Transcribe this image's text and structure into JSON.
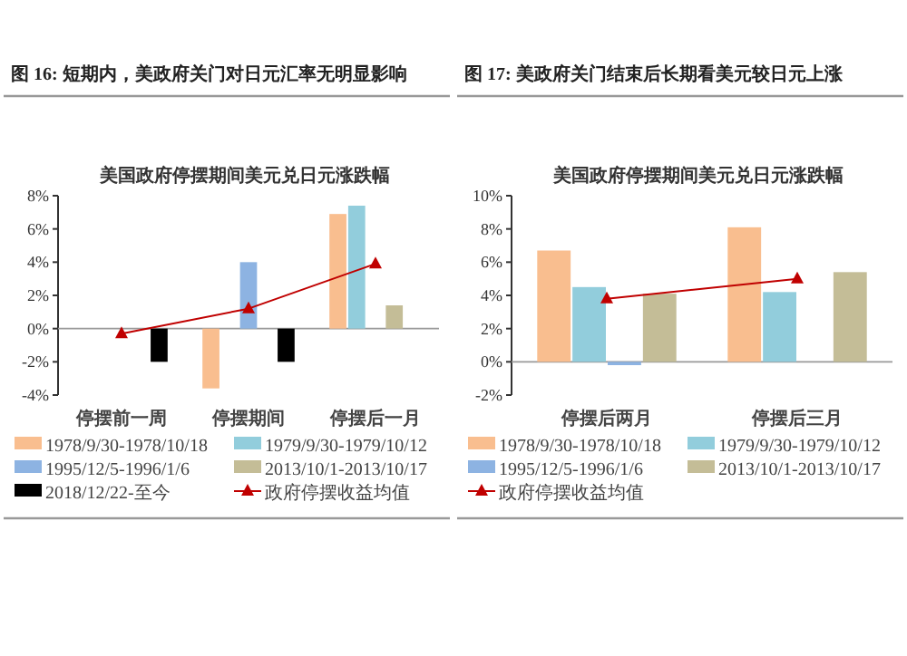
{
  "chart_data": [
    {
      "type": "bar",
      "title": "图 16: 短期内，美政府关门对日元汇率无明显影响",
      "subtitle": "美国政府停摆期间美元兑日元涨跌幅",
      "categories": [
        "停摆前一周",
        "停摆期间",
        "停摆后一月"
      ],
      "series": [
        {
          "name": "1978/9/30-1978/10/18",
          "color": "#f9be8f",
          "values": [
            null,
            -3.6,
            6.9
          ]
        },
        {
          "name": "1979/9/30-1979/10/12",
          "color": "#92cddc",
          "values": [
            null,
            null,
            7.4
          ]
        },
        {
          "name": "1995/12/5-1996/1/6",
          "color": "#8db3e2",
          "values": [
            null,
            4.0,
            null
          ]
        },
        {
          "name": "2013/10/1-2013/10/17",
          "color": "#c4bd97",
          "values": [
            null,
            null,
            1.4
          ]
        },
        {
          "name": "2018/12/22-至今",
          "color": "#000000",
          "values": [
            -2.0,
            -2.0,
            null
          ]
        },
        {
          "name": "政府停摆收益均值",
          "type": "line",
          "color": "#c00000",
          "marker": "triangle",
          "values": [
            -0.3,
            1.2,
            3.9
          ]
        }
      ],
      "ylim": [
        -4,
        8
      ],
      "yticks": [
        {
          "value": -4,
          "label": "-4%"
        },
        {
          "value": -2,
          "label": "-2%"
        },
        {
          "value": 0,
          "label": "0%"
        },
        {
          "value": 2,
          "label": "2%"
        },
        {
          "value": 4,
          "label": "4%"
        },
        {
          "value": 6,
          "label": "6%"
        },
        {
          "value": 8,
          "label": "8%"
        }
      ],
      "legend": "bottom"
    },
    {
      "type": "bar",
      "title": "图 17: 美政府关门结束后长期看美元较日元上涨",
      "subtitle": "美国政府停摆期间美元兑日元涨跌幅",
      "categories": [
        "停摆后两月",
        "停摆后三月"
      ],
      "series": [
        {
          "name": "1978/9/30-1978/10/18",
          "color": "#f9be8f",
          "values": [
            6.7,
            8.1
          ]
        },
        {
          "name": "1979/9/30-1979/10/12",
          "color": "#92cddc",
          "values": [
            4.5,
            4.2
          ]
        },
        {
          "name": "1995/12/5-1996/1/6",
          "color": "#8db3e2",
          "values": [
            -0.2,
            null
          ]
        },
        {
          "name": "2013/10/1-2013/10/17",
          "color": "#c4bd97",
          "values": [
            4.1,
            5.4
          ]
        },
        {
          "name": "政府停摆收益均值",
          "type": "line",
          "color": "#c00000",
          "marker": "triangle",
          "values": [
            3.8,
            5.0
          ]
        }
      ],
      "ylim": [
        -2,
        10
      ],
      "yticks": [
        {
          "value": -2,
          "label": "-2%"
        },
        {
          "value": 0,
          "label": "0%"
        },
        {
          "value": 2,
          "label": "2%"
        },
        {
          "value": 4,
          "label": "4%"
        },
        {
          "value": 6,
          "label": "6%"
        },
        {
          "value": 8,
          "label": "8%"
        },
        {
          "value": 10,
          "label": "10%"
        }
      ],
      "legend": "bottom"
    }
  ]
}
